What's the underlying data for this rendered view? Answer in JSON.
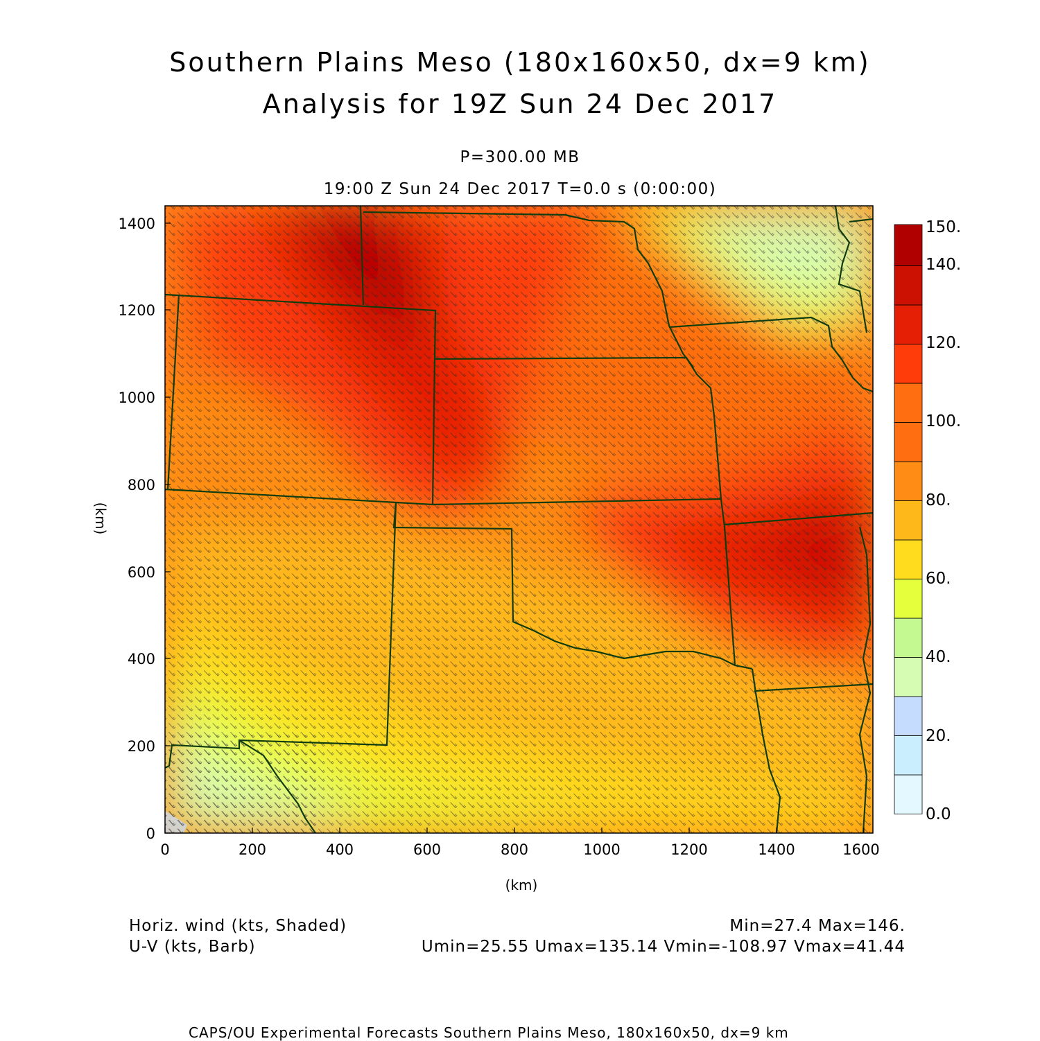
{
  "titles": {
    "line1": "Southern Plains Meso (180x160x50, dx=9 km)",
    "line2": "Analysis for 19Z Sun 24 Dec 2017",
    "level": "P=300.00 MB",
    "time": "19:00 Z Sun 24 Dec 2017    T=0.0 s (0:00:00)"
  },
  "axes": {
    "xlabel": "(km)",
    "ylabel": "(km)",
    "xticks": [
      "0",
      "200",
      "400",
      "600",
      "800",
      "1000",
      "1200",
      "1400",
      "1600"
    ],
    "yticks": [
      "0",
      "200",
      "400",
      "600",
      "800",
      "1000",
      "1200",
      "1400"
    ],
    "xlim": [
      0,
      1620
    ],
    "ylim": [
      0,
      1440
    ]
  },
  "colorbar": {
    "labels": [
      "150.",
      "140.",
      "120.",
      "100.",
      "80.",
      "60.",
      "40.",
      "20.",
      "0.0"
    ],
    "levels": [
      0,
      10,
      20,
      30,
      40,
      50,
      60,
      70,
      80,
      90,
      100,
      110,
      120,
      130,
      140,
      150
    ],
    "colors": [
      "#e4f8ff",
      "#cbeeff",
      "#c6dcff",
      "#d6fcb4",
      "#c4f890",
      "#e6ff3c",
      "#ffdc1e",
      "#ffb81a",
      "#ff8c14",
      "#ff6e10",
      "#ff3c0a",
      "#e51e06",
      "#cc1002",
      "#b00000"
    ]
  },
  "footer": {
    "field1": "Horiz. wind (kts, Shaded)",
    "field2": "U-V (kts, Barb)",
    "minmax": "Min=27.4 Max=146.",
    "uvminmax": "Umin=25.55 Umax=135.14 Vmin=-108.97 Vmax=41.44",
    "credit": "CAPS/OU Experimental Forecasts  Southern Plains Meso, 180x160x50, dx=9 km"
  },
  "colors": {
    "border": "#103c10",
    "barb": "#2a2a2a"
  }
}
